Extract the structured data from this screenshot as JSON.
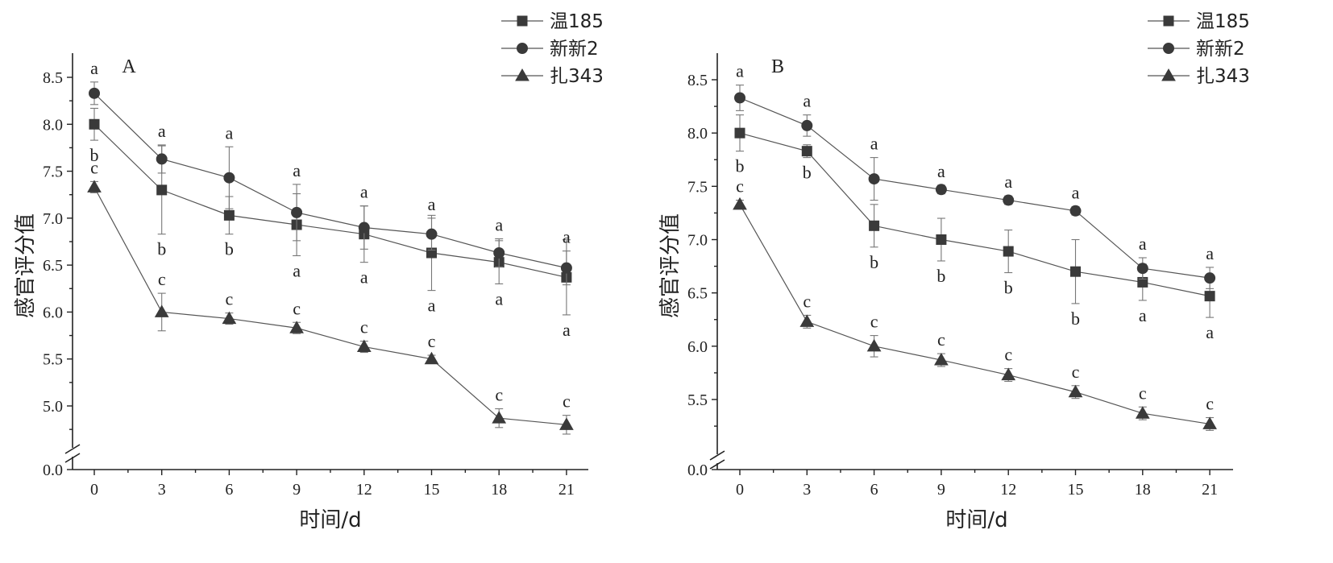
{
  "chart_data": [
    {
      "type": "line",
      "panel_label": "A",
      "xlabel": "时间/d",
      "ylabel": "感官评分值",
      "x": [
        0,
        3,
        6,
        9,
        12,
        15,
        18,
        21
      ],
      "x_ticks": [
        "0",
        "3",
        "6",
        "9",
        "12",
        "15",
        "18",
        "21"
      ],
      "y_ticks": [
        "0.0",
        "5.0",
        "5.5",
        "6.0",
        "6.5",
        "7.0",
        "7.5",
        "8.0",
        "8.5"
      ],
      "ylim": [
        4.5,
        8.75
      ],
      "axis_break": true,
      "legend_position": "top-right",
      "series": [
        {
          "name": "温185",
          "marker": "square",
          "values": [
            8.0,
            7.3,
            7.03,
            6.93,
            6.83,
            6.63,
            6.53,
            6.37
          ],
          "errors": [
            0.17,
            0.47,
            0.2,
            0.33,
            0.3,
            0.4,
            0.23,
            0.4
          ],
          "letters": [
            "b",
            "b",
            "b",
            "a",
            "a",
            "a",
            "a",
            "a"
          ]
        },
        {
          "name": "新新2",
          "marker": "circle",
          "values": [
            8.33,
            7.63,
            7.43,
            7.06,
            6.9,
            6.83,
            6.63,
            6.47
          ],
          "errors": [
            0.12,
            0.15,
            0.33,
            0.3,
            0.23,
            0.17,
            0.15,
            0.18
          ],
          "letters": [
            "a",
            "a",
            "a",
            "a",
            "a",
            "a",
            "a",
            "a"
          ]
        },
        {
          "name": "扎343",
          "marker": "triangle",
          "values": [
            7.33,
            6.0,
            5.93,
            5.83,
            5.63,
            5.5,
            4.87,
            4.8
          ],
          "errors": [
            0.06,
            0.2,
            0.06,
            0.06,
            0.06,
            0.04,
            0.1,
            0.1
          ],
          "letters": [
            "c",
            "c",
            "c",
            "c",
            "c",
            "c",
            "c",
            "c"
          ]
        }
      ]
    },
    {
      "type": "line",
      "panel_label": "B",
      "xlabel": "时间/d",
      "ylabel": "感官评分值",
      "x": [
        0,
        3,
        6,
        9,
        12,
        15,
        18,
        21
      ],
      "x_ticks": [
        "0",
        "3",
        "6",
        "9",
        "12",
        "15",
        "18",
        "21"
      ],
      "y_ticks": [
        "0.0",
        "5.5",
        "6.0",
        "6.5",
        "7.0",
        "7.5",
        "8.0",
        "8.5"
      ],
      "ylim": [
        4.95,
        8.75
      ],
      "axis_break": true,
      "legend_position": "top-right",
      "series": [
        {
          "name": "温185",
          "marker": "square",
          "values": [
            8.0,
            7.83,
            7.13,
            7.0,
            6.89,
            6.7,
            6.6,
            6.47
          ],
          "errors": [
            0.17,
            0.06,
            0.2,
            0.2,
            0.2,
            0.3,
            0.17,
            0.2
          ],
          "letters": [
            "b",
            "b",
            "b",
            "b",
            "b",
            "b",
            "a",
            "a"
          ]
        },
        {
          "name": "新新2",
          "marker": "circle",
          "values": [
            8.33,
            8.07,
            7.57,
            7.47,
            7.37,
            7.27,
            6.73,
            6.64
          ],
          "errors": [
            0.12,
            0.1,
            0.2,
            0.04,
            0.04,
            0.04,
            0.1,
            0.1
          ],
          "letters": [
            "a",
            "a",
            "a",
            "a",
            "a",
            "a",
            "a",
            "a"
          ]
        },
        {
          "name": "扎343",
          "marker": "triangle",
          "values": [
            7.33,
            6.23,
            6.0,
            5.87,
            5.73,
            5.57,
            5.37,
            5.27
          ],
          "errors": [
            0.04,
            0.06,
            0.1,
            0.06,
            0.06,
            0.06,
            0.06,
            0.06
          ],
          "letters": [
            "c",
            "c",
            "c",
            "c",
            "c",
            "c",
            "c",
            "c"
          ]
        }
      ]
    }
  ]
}
